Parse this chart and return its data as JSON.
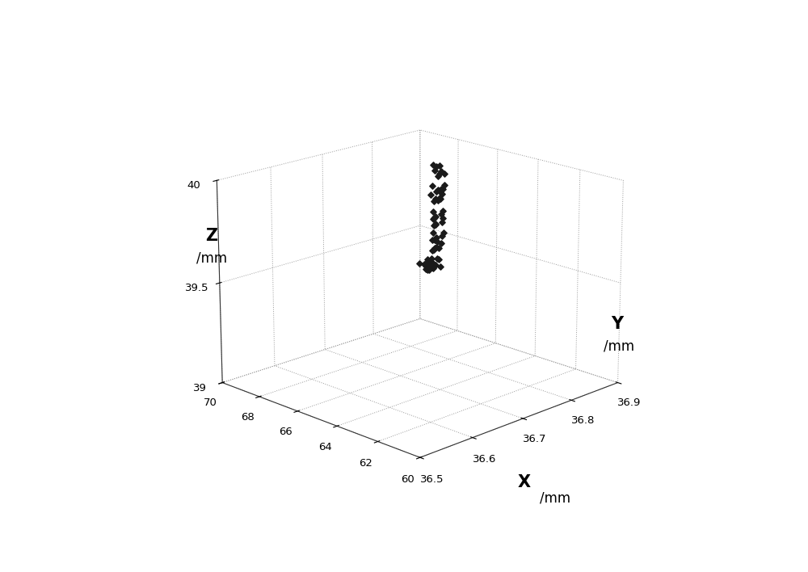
{
  "title": "",
  "xlabel": "X",
  "ylabel": "Y",
  "zlabel": "Z",
  "xlabel_unit": "/mm",
  "ylabel_unit": "/mm",
  "zlabel_unit": "/mm",
  "xlim": [
    36.5,
    36.9
  ],
  "ylim": [
    60,
    70
  ],
  "zlim": [
    39,
    40
  ],
  "xticks": [
    36.5,
    36.6,
    36.7,
    36.8,
    36.9
  ],
  "yticks": [
    60,
    62,
    64,
    66,
    68,
    70
  ],
  "zticks": [
    39,
    39.5,
    40
  ],
  "background_color": "#ffffff",
  "point_color": "#1a1a1a",
  "grid_color": "#999999",
  "scatter_x": [
    36.55,
    36.558,
    36.562,
    36.565,
    36.57,
    36.573,
    36.578,
    36.582,
    36.586,
    36.559,
    36.564,
    36.568,
    36.572,
    36.576,
    36.58,
    36.563,
    36.567,
    36.571,
    36.575,
    36.579,
    36.612,
    36.616,
    36.62,
    36.624,
    36.628,
    36.615,
    36.619,
    36.623,
    36.655,
    36.66,
    36.665,
    36.658,
    36.662,
    36.667,
    36.695,
    36.7,
    36.705,
    36.698,
    36.702,
    36.707,
    36.735,
    36.74,
    36.745,
    36.738,
    36.742,
    36.747,
    36.775,
    36.78,
    36.785,
    36.79,
    36.778,
    36.783,
    36.788,
    36.82,
    36.825,
    36.83,
    36.835,
    36.822,
    36.827,
    36.832,
    36.86,
    36.865,
    36.87,
    36.875,
    36.862,
    36.867,
    36.872,
    36.877
  ],
  "scatter_y": [
    61.0,
    61.1,
    61.3,
    61.2,
    61.4,
    61.1,
    61.3,
    61.5,
    61.2,
    61.0,
    61.4,
    61.1,
    61.3,
    61.5,
    61.2,
    61.6,
    61.4,
    61.2,
    61.3,
    61.1,
    62.1,
    62.3,
    62.0,
    62.2,
    62.4,
    62.1,
    62.3,
    62.5,
    63.1,
    63.3,
    63.0,
    63.2,
    63.4,
    63.1,
    64.1,
    64.3,
    64.0,
    64.2,
    64.4,
    64.1,
    65.1,
    65.3,
    65.0,
    65.2,
    65.4,
    65.1,
    66.1,
    66.3,
    66.0,
    66.2,
    66.4,
    66.1,
    66.3,
    67.1,
    67.3,
    67.0,
    67.2,
    67.4,
    67.1,
    67.3,
    68.0,
    68.2,
    68.4,
    68.1,
    68.3,
    68.5,
    68.2,
    68.4
  ],
  "scatter_z": [
    39.8,
    39.79,
    39.81,
    39.78,
    39.82,
    39.8,
    39.79,
    39.81,
    39.78,
    39.82,
    39.8,
    39.79,
    39.81,
    39.78,
    39.82,
    39.8,
    39.79,
    39.81,
    39.78,
    39.82,
    39.82,
    39.8,
    39.84,
    39.81,
    39.83,
    39.82,
    39.8,
    39.84,
    39.81,
    39.79,
    39.83,
    39.8,
    39.82,
    39.81,
    39.82,
    39.8,
    39.84,
    39.81,
    39.83,
    39.82,
    39.8,
    39.78,
    39.82,
    39.79,
    39.81,
    39.8,
    39.83,
    39.81,
    39.85,
    39.82,
    39.84,
    39.83,
    39.81,
    39.82,
    39.8,
    39.84,
    39.81,
    39.83,
    39.82,
    39.8,
    39.85,
    39.83,
    39.87,
    39.84,
    39.86,
    39.88,
    39.85,
    39.87
  ],
  "elev": 18,
  "azim": 225,
  "marker": "D",
  "marker_size": 14,
  "font_size_axis_label": 13,
  "font_size_tick": 9.5,
  "tick_color": "#333333"
}
